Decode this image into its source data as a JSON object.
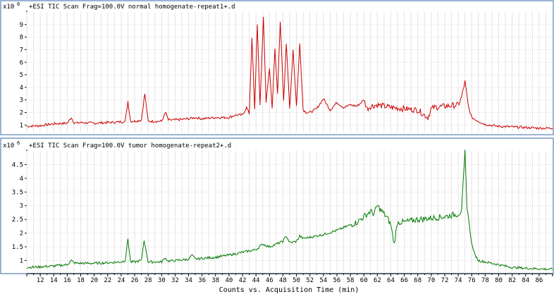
{
  "panels": [
    {
      "title": "+ESI TIC Scan Frag=100.0V normal homogenate-repeat1+.d",
      "scale_label": "x10",
      "scale_exp": "6"
    },
    {
      "title": "+ESI TIC Scan Frag=100.0V tumor homogenate-repeat2+.d",
      "scale_label": "x10",
      "scale_exp": "6"
    }
  ],
  "xaxis": {
    "label": "Counts vs. Acquisition Time (min)"
  },
  "chart_data": [
    {
      "type": "line",
      "title": "+ESI TIC Scan Frag=100.0V normal homogenate-repeat1+.d",
      "xlabel": "Counts vs. Acquisition Time (min)",
      "ylabel": "",
      "xlim": [
        10.0,
        88.0
      ],
      "ylim": [
        0.4,
        10.0
      ],
      "yticks": [
        1,
        2,
        3,
        4,
        5,
        6,
        7,
        8,
        9
      ],
      "ytick_labels": [
        "1",
        "2",
        "3",
        "4",
        "5",
        "6",
        "7",
        "8",
        "9"
      ],
      "grid": true,
      "color": "#cc0000",
      "series": [
        {
          "x": [
            10.0,
            12.0,
            14.0,
            16.0,
            16.6,
            17.0,
            17.4,
            18.0,
            20.0,
            22.0,
            24.0,
            24.6,
            25.0,
            25.4,
            26.0,
            27.0,
            27.5,
            28.0,
            30.0,
            30.6,
            31.0,
            32.0,
            34.0,
            35.0,
            36.0,
            38.0,
            40.0,
            41.0,
            42.0,
            42.6,
            43.0,
            43.4,
            43.8,
            44.2,
            44.6,
            45.1,
            45.5,
            46.0,
            46.4,
            46.8,
            47.2,
            47.6,
            48.1,
            48.5,
            49.0,
            49.5,
            50.0,
            50.5,
            51.0,
            51.5,
            52.0,
            53.0,
            54.0,
            55.0,
            56.0,
            57.0,
            58.0,
            59.0,
            60.0,
            60.5,
            61.0,
            62.0,
            64.0,
            66.0,
            68.0,
            69.5,
            70.0,
            70.5,
            72.0,
            74.0,
            74.5,
            75.0,
            75.5,
            76.0,
            77.0,
            78.0,
            80.0,
            82.0,
            84.0,
            86.0,
            88.0
          ],
          "y": [
            0.9,
            0.95,
            1.1,
            1.15,
            1.6,
            1.2,
            1.15,
            1.2,
            1.15,
            1.2,
            1.25,
            1.3,
            2.9,
            1.3,
            1.3,
            1.4,
            3.5,
            1.3,
            1.3,
            2.0,
            1.4,
            1.4,
            1.5,
            1.6,
            1.5,
            1.6,
            1.6,
            1.8,
            1.8,
            2.4,
            1.9,
            8.0,
            2.2,
            9.0,
            2.5,
            9.6,
            2.8,
            5.5,
            2.4,
            7.0,
            3.5,
            9.3,
            3.0,
            7.5,
            2.3,
            7.0,
            2.5,
            7.5,
            2.2,
            2.0,
            2.0,
            2.3,
            3.1,
            2.2,
            2.8,
            2.4,
            2.6,
            2.5,
            3.0,
            2.3,
            2.5,
            2.6,
            2.4,
            2.3,
            2.2,
            1.6,
            2.3,
            2.4,
            2.5,
            2.6,
            3.2,
            4.5,
            2.5,
            1.6,
            1.3,
            1.05,
            0.9,
            0.85,
            0.8,
            0.75,
            0.75
          ]
        }
      ]
    },
    {
      "type": "line",
      "title": "+ESI TIC Scan Frag=100.0V tumor homogenate-repeat2+.d",
      "xlabel": "Counts vs. Acquisition Time (min)",
      "ylabel": "",
      "xlim": [
        10.0,
        88.0
      ],
      "ylim": [
        0.6,
        5.0
      ],
      "yticks": [
        1,
        1.5,
        2,
        2.5,
        3,
        3.5,
        4,
        4.5
      ],
      "ytick_labels": [
        "1",
        "1.5",
        "2",
        "2.5",
        "3",
        "3.5",
        "4",
        "4.5"
      ],
      "grid": true,
      "color": "#007a00",
      "series": [
        {
          "x": [
            10.0,
            12.0,
            14.0,
            16.0,
            16.6,
            17.0,
            17.5,
            18.0,
            20.0,
            22.0,
            24.0,
            24.6,
            25.0,
            25.4,
            26.0,
            27.0,
            27.4,
            28.0,
            30.0,
            30.5,
            31.0,
            32.0,
            34.0,
            34.5,
            35.0,
            36.0,
            38.0,
            40.0,
            42.0,
            44.0,
            45.0,
            46.0,
            47.0,
            48.0,
            48.5,
            49.0,
            50.0,
            50.5,
            51.0,
            52.0,
            54.0,
            56.0,
            57.0,
            58.0,
            59.0,
            60.0,
            61.0,
            61.5,
            62.0,
            62.5,
            63.0,
            63.5,
            64.0,
            64.5,
            65.0,
            66.0,
            68.0,
            70.0,
            72.0,
            73.0,
            74.0,
            74.5,
            75.0,
            75.3,
            75.6,
            76.0,
            76.5,
            77.0,
            78.0,
            80.0,
            82.0,
            84.0,
            86.0,
            88.0
          ],
          "y": [
            0.75,
            0.77,
            0.8,
            0.85,
            1.0,
            0.92,
            0.9,
            0.9,
            0.9,
            0.92,
            0.95,
            1.0,
            1.8,
            0.95,
            0.95,
            1.0,
            1.75,
            0.95,
            0.95,
            1.1,
            0.98,
            1.0,
            1.05,
            1.2,
            1.05,
            1.08,
            1.12,
            1.2,
            1.3,
            1.4,
            1.6,
            1.5,
            1.6,
            1.7,
            1.9,
            1.65,
            1.7,
            1.9,
            1.8,
            1.85,
            1.95,
            2.1,
            2.2,
            2.3,
            2.4,
            2.6,
            2.8,
            2.7,
            3.0,
            2.85,
            2.7,
            2.55,
            2.3,
            1.6,
            2.4,
            2.4,
            2.5,
            2.55,
            2.6,
            2.65,
            2.7,
            2.8,
            4.95,
            3.0,
            2.4,
            1.6,
            1.2,
            1.0,
            0.95,
            0.85,
            0.75,
            0.72,
            0.7,
            0.68
          ]
        }
      ]
    }
  ]
}
